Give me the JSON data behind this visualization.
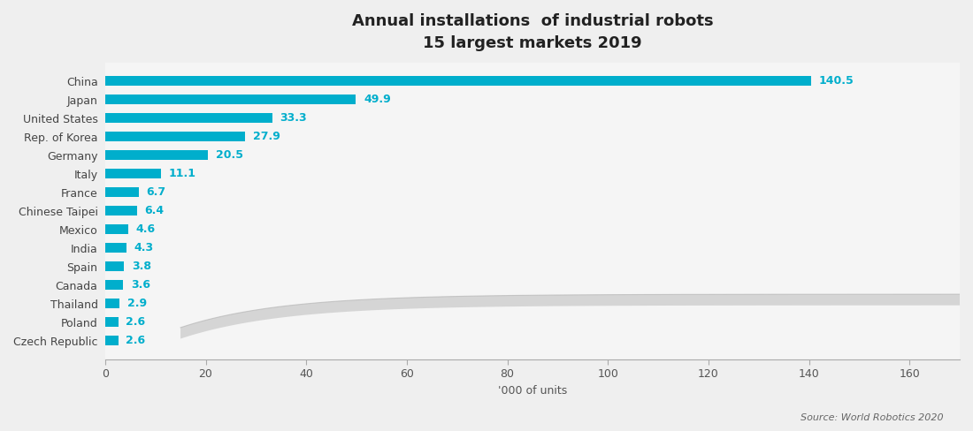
{
  "title_line1": "Annual installations  of industrial robots",
  "title_line2": "15 largest markets 2019",
  "countries": [
    "China",
    "Japan",
    "United States",
    "Rep. of Korea",
    "Germany",
    "Italy",
    "France",
    "Chinese Taipei",
    "Mexico",
    "India",
    "Spain",
    "Canada",
    "Thailand",
    "Poland",
    "Czech Republic"
  ],
  "values": [
    140.5,
    49.9,
    33.3,
    27.9,
    20.5,
    11.1,
    6.7,
    6.4,
    4.6,
    4.3,
    3.8,
    3.6,
    2.9,
    2.6,
    2.6
  ],
  "bar_color": "#00AECC",
  "label_color": "#00AECC",
  "title_color": "#222222",
  "axis_label": "'000 of units",
  "source_text": "Source: World Robotics 2020",
  "xlim": [
    0,
    170
  ],
  "xticks": [
    0,
    20,
    40,
    60,
    80,
    100,
    120,
    140,
    160
  ],
  "figure_bg": "#f0f0f0"
}
